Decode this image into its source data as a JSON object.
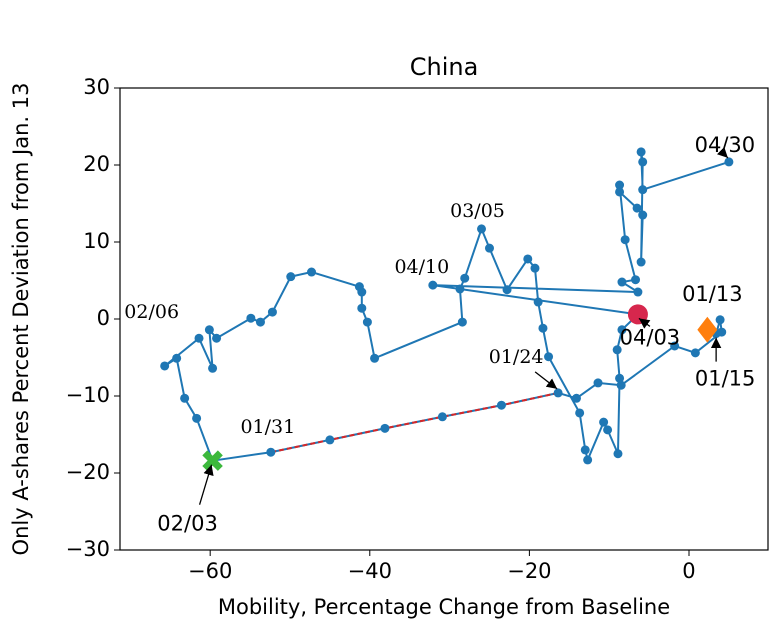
{
  "chart_data": {
    "type": "line",
    "title": "China",
    "x_label": "Mobility, Percentage Change from Baseline",
    "y_label": "Only A-shares Percent Deviation from Jan. 13",
    "xlim": [
      -71.3,
      9.9
    ],
    "ylim": [
      -30,
      30
    ],
    "xticks": [
      {
        "value": -60,
        "label": "−60"
      },
      {
        "value": -40,
        "label": "−40"
      },
      {
        "value": -20,
        "label": "−20"
      },
      0
    ],
    "yticks": [
      {
        "value": -30,
        "label": "−30"
      },
      {
        "value": -20,
        "label": "−20"
      },
      {
        "value": -10,
        "label": "−10"
      },
      0,
      10,
      20,
      30
    ],
    "series": [
      {
        "color": "#1f77b4",
        "x": [
          2.3,
          3.4,
          3.9,
          4.1,
          0.8,
          -1.8,
          -8.5,
          -11.4,
          -14.1,
          -16.4,
          -23.5,
          -30.9,
          -38.1,
          -45.0,
          -52.4,
          -59.7,
          -61.7,
          -63.2,
          -64.2,
          -65.7,
          -61.4,
          -59.7,
          -60.1,
          -59.2,
          -54.9,
          -53.7,
          -52.2,
          -49.9,
          -47.3,
          -41.3,
          -41.0,
          -41.0,
          -40.3,
          -39.4,
          -28.4,
          -28.7,
          -28.1,
          -26.0,
          -25.0,
          -22.8,
          -20.2,
          -19.3,
          -18.9,
          -18.3,
          -17.6,
          -13.7,
          -13.0,
          -12.7,
          -10.7,
          -10.2,
          -8.9,
          -8.7,
          -9.0,
          -8.4,
          -6.4,
          -32.1,
          -6.4,
          -8.4,
          -6.7,
          -8.0,
          -8.7,
          -8.7,
          -6.5,
          -5.8,
          -6.0,
          -5.8,
          -6.0,
          -5.8,
          5.0
        ],
        "values": [
          -1.4,
          -1.9,
          -0.1,
          -1.7,
          -4.4,
          -3.5,
          -8.6,
          -8.3,
          -10.3,
          -9.6,
          -11.2,
          -12.7,
          -14.2,
          -15.7,
          -17.3,
          -18.4,
          -12.9,
          -10.3,
          -5.1,
          -6.1,
          -2.5,
          -6.4,
          -1.4,
          -2.5,
          0.1,
          -0.4,
          0.9,
          5.5,
          6.1,
          4.2,
          3.5,
          1.4,
          -0.4,
          -5.1,
          -0.4,
          3.9,
          5.3,
          11.7,
          9.2,
          3.8,
          7.8,
          6.6,
          2.2,
          -1.2,
          -4.9,
          -12.2,
          -17.0,
          -18.3,
          -13.4,
          -14.4,
          -17.5,
          -7.7,
          -4.0,
          -1.4,
          0.6,
          4.4,
          3.5,
          4.8,
          5.1,
          10.3,
          17.4,
          16.5,
          14.4,
          13.5,
          7.4,
          20.4,
          21.7,
          16.8,
          20.4
        ]
      }
    ],
    "highlight_segment": {
      "color": "#d62728",
      "x": [
        -16.4,
        -23.5,
        -30.9,
        -38.1,
        -45.0,
        -52.4
      ],
      "values": [
        -9.6,
        -11.2,
        -12.7,
        -14.2,
        -15.7,
        -17.3
      ]
    },
    "markers": [
      {
        "shape": "diamond",
        "color": "#ff7f0e",
        "x": 2.3,
        "y": -1.4
      },
      {
        "shape": "x",
        "color": "#3cb83c",
        "x": -59.7,
        "y": -18.4
      },
      {
        "shape": "circle",
        "color": "#d6274d",
        "x": -6.4,
        "y": 0.6
      }
    ],
    "annotations": [
      {
        "text": "01/13",
        "x": 2.3,
        "y": -1.4
      },
      {
        "text": "01/15",
        "x": 3.4,
        "y": -1.9
      },
      {
        "text": "01/24",
        "x": -16.4,
        "y": -9.6
      },
      {
        "text": "01/31",
        "x": -52.4,
        "y": -17.3
      },
      {
        "text": "02/03",
        "x": -59.7,
        "y": -18.4
      },
      {
        "text": "02/06",
        "x": -65.7,
        "y": -6.1
      },
      {
        "text": "03/05",
        "x": -26.0,
        "y": 11.7
      },
      {
        "text": "04/03",
        "x": -6.4,
        "y": 0.6
      },
      {
        "text": "04/10",
        "x": -32.1,
        "y": 4.4
      },
      {
        "text": "04/30",
        "x": 5.0,
        "y": 20.4
      }
    ]
  }
}
